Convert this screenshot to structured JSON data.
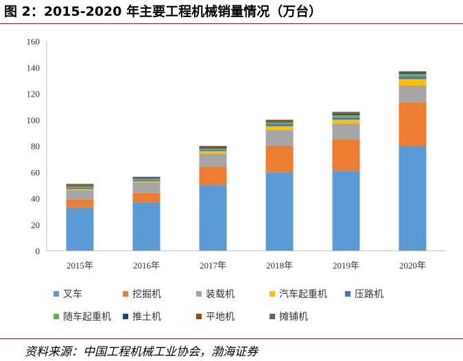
{
  "title": "图 2：2015-2020 年主要工程机械销量情况（万台）",
  "source": "资料来源：中国工程机械工业协会，渤海证券",
  "chart_data": {
    "type": "bar",
    "stacked": true,
    "categories": [
      "2015年",
      "2016年",
      "2017年",
      "2018年",
      "2019年",
      "2020年"
    ],
    "ylim": [
      0,
      160
    ],
    "yticks": [
      0,
      20,
      40,
      60,
      80,
      100,
      120,
      140,
      160
    ],
    "ytick_labels": [
      "0",
      "20",
      "40",
      "60",
      "80",
      "100",
      "120",
      "140",
      "160"
    ],
    "grid": false,
    "legend_position": "bottom",
    "series": [
      {
        "name": "叉车",
        "color": "#5B9BD5",
        "values": [
          33,
          37,
          50,
          60,
          61,
          80
        ]
      },
      {
        "name": "挖掘机",
        "color": "#ED7D31",
        "values": [
          6,
          7,
          14,
          20,
          24,
          33
        ]
      },
      {
        "name": "装载机",
        "color": "#A5A5A5",
        "values": [
          7,
          8,
          10,
          12,
          12,
          13
        ]
      },
      {
        "name": "汽车起重机",
        "color": "#FFC000",
        "values": [
          1,
          1,
          2,
          3,
          3,
          5
        ]
      },
      {
        "name": "压路机",
        "color": "#4472C4",
        "values": [
          1,
          1,
          1,
          1.5,
          1.5,
          2
        ]
      },
      {
        "name": "随车起重机",
        "color": "#70AD47",
        "values": [
          1,
          1,
          1,
          1.5,
          2,
          2
        ]
      },
      {
        "name": "推土机",
        "color": "#264478",
        "values": [
          0.5,
          0.5,
          0.7,
          0.7,
          0.8,
          1
        ]
      },
      {
        "name": "平地机",
        "color": "#9E480E",
        "values": [
          0.5,
          0.5,
          0.6,
          0.6,
          0.6,
          0.5
        ]
      },
      {
        "name": "摊铺机",
        "color": "#636363",
        "values": [
          1,
          0.5,
          0.7,
          0.7,
          1.1,
          0.5
        ]
      }
    ]
  }
}
